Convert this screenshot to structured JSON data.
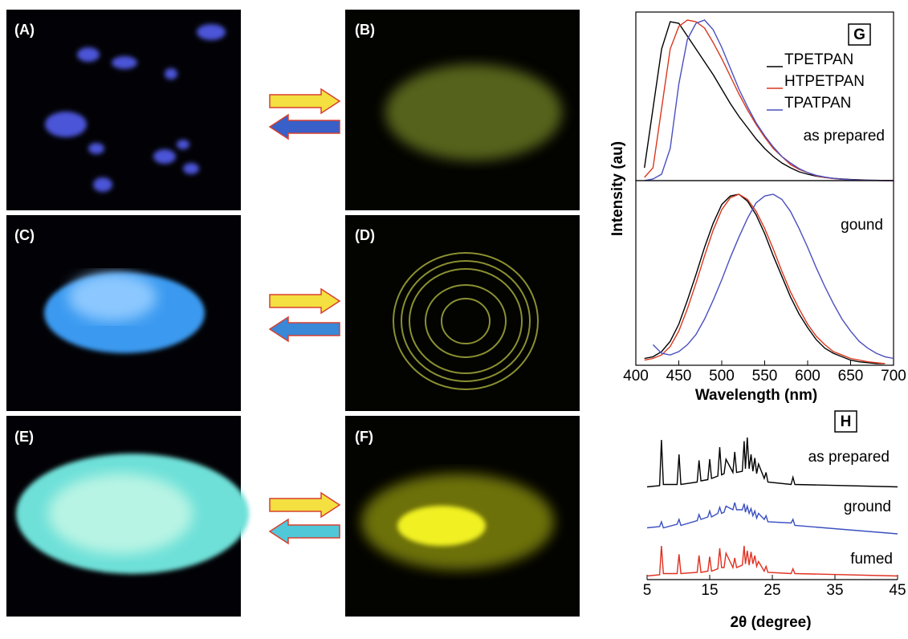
{
  "panels": [
    "(A)",
    "(B)",
    "(C)",
    "(D)",
    "(E)",
    "(F)"
  ],
  "chart_data": [
    {
      "type": "line",
      "label": "G",
      "ylabel": "Intensity (au)",
      "annotations": [
        "as prepared"
      ],
      "xlim": [
        400,
        700
      ],
      "ylim": [
        0,
        1.05
      ],
      "legend": "upper right",
      "x": [
        410,
        420,
        430,
        440,
        450,
        460,
        470,
        480,
        490,
        500,
        510,
        520,
        530,
        540,
        550,
        560,
        570,
        580,
        590,
        600,
        610,
        620,
        630,
        640,
        650,
        660,
        670,
        680,
        690,
        700
      ],
      "series": [
        {
          "name": "TPETPAN",
          "color": "#000000",
          "values": [
            0.08,
            0.45,
            0.82,
            0.99,
            0.98,
            0.9,
            0.82,
            0.74,
            0.66,
            0.57,
            0.48,
            0.4,
            0.33,
            0.26,
            0.2,
            0.15,
            0.11,
            0.08,
            0.055,
            0.04,
            0.028,
            0.02,
            0.014,
            0.01,
            0.007,
            0.005,
            0.003,
            0.002,
            0.001,
            0
          ]
        },
        {
          "name": "HTPETPAN",
          "color": "#d9381e",
          "values": [
            0.02,
            0.08,
            0.45,
            0.82,
            0.96,
            1.0,
            0.99,
            0.95,
            0.86,
            0.76,
            0.65,
            0.54,
            0.44,
            0.35,
            0.27,
            0.2,
            0.15,
            0.1,
            0.07,
            0.05,
            0.03,
            0.02,
            0.013,
            0.008,
            0.005,
            0.003,
            0.002,
            0.001,
            0,
            0
          ]
        },
        {
          "name": "TPATPAN",
          "color": "#4a4fc0",
          "values": [
            0,
            0.01,
            0.04,
            0.2,
            0.6,
            0.88,
            0.98,
            1.0,
            0.94,
            0.83,
            0.7,
            0.57,
            0.46,
            0.36,
            0.28,
            0.21,
            0.15,
            0.11,
            0.075,
            0.05,
            0.033,
            0.022,
            0.014,
            0.009,
            0.005,
            0.003,
            0.002,
            0.001,
            0,
            0
          ]
        }
      ]
    },
    {
      "type": "line",
      "xlabel": "Wavelength (nm)",
      "annotations": [
        "gound"
      ],
      "xlim": [
        400,
        700
      ],
      "xticks": [
        400,
        450,
        500,
        550,
        600,
        650,
        700
      ],
      "ylim": [
        0,
        1.08
      ],
      "x": [
        410,
        420,
        430,
        440,
        450,
        460,
        470,
        480,
        490,
        500,
        510,
        520,
        530,
        540,
        550,
        560,
        570,
        580,
        590,
        600,
        610,
        620,
        630,
        640,
        650,
        660,
        670,
        680,
        690,
        700
      ],
      "series": [
        {
          "color": "#000000",
          "values": [
            0.04,
            0.05,
            0.08,
            0.14,
            0.24,
            0.38,
            0.53,
            0.69,
            0.83,
            0.94,
            0.99,
            1.0,
            0.96,
            0.88,
            0.77,
            0.64,
            0.52,
            0.4,
            0.3,
            0.22,
            0.15,
            0.1,
            0.07,
            0.05,
            0.03,
            0.02,
            0.015,
            0.01,
            0.01,
            null
          ]
        },
        {
          "color": "#d9381e",
          "values": [
            0.03,
            0.04,
            0.06,
            0.11,
            0.2,
            0.33,
            0.48,
            0.64,
            0.79,
            0.91,
            0.98,
            1.0,
            0.97,
            0.9,
            0.8,
            0.68,
            0.55,
            0.43,
            0.33,
            0.24,
            0.17,
            0.12,
            0.08,
            0.06,
            0.04,
            0.03,
            0.02,
            0.015,
            0.01,
            null
          ]
        },
        {
          "color": "#4a4fc0",
          "values": [
            null,
            0.12,
            0.07,
            0.06,
            0.08,
            0.12,
            0.18,
            0.27,
            0.38,
            0.5,
            0.63,
            0.75,
            0.86,
            0.95,
            0.99,
            1.0,
            0.97,
            0.9,
            0.8,
            0.69,
            0.57,
            0.46,
            0.36,
            0.27,
            0.2,
            0.14,
            0.1,
            0.07,
            0.05,
            0.04
          ]
        }
      ]
    },
    {
      "type": "line",
      "label": "H",
      "xlabel": "2θ (degree)",
      "annotations": [
        "as prepared",
        "ground",
        "fumed"
      ],
      "xlim": [
        5,
        45
      ],
      "xticks": [
        5,
        15,
        25,
        35,
        45
      ],
      "ylim": [
        0,
        12
      ],
      "x": [
        5,
        7,
        7.3,
        7.6,
        9.8,
        10.1,
        10.4,
        13,
        13.3,
        13.6,
        14.7,
        15,
        15.3,
        16.3,
        16.6,
        16.9,
        17.3,
        17.6,
        18.7,
        19,
        19.3,
        20.2,
        20.5,
        20.7,
        21,
        21.3,
        21.6,
        21.9,
        22.2,
        22.5,
        22.8,
        23.7,
        24,
        24.3,
        28,
        28.3,
        28.6,
        45
      ],
      "series": [
        {
          "color": "#000000",
          "values": [
            7.7,
            7.8,
            11.6,
            7.9,
            7.9,
            10.4,
            7.9,
            8.1,
            9.9,
            8.2,
            8.3,
            10.0,
            8.4,
            8.6,
            11.0,
            8.7,
            8.8,
            10.0,
            8.9,
            10.6,
            8.9,
            9.0,
            11.5,
            9.2,
            11.8,
            9.2,
            10.4,
            9.0,
            10.1,
            8.8,
            9.6,
            8.4,
            8.9,
            8.1,
            7.9,
            8.5,
            7.9,
            7.7
          ]
        },
        {
          "color": "#3a4fc0",
          "values": [
            4.3,
            4.4,
            4.8,
            4.3,
            4.6,
            5.0,
            4.5,
            4.9,
            5.4,
            5.0,
            5.2,
            5.7,
            5.2,
            5.5,
            6.0,
            5.5,
            5.6,
            6.1,
            5.8,
            6.4,
            5.8,
            5.8,
            6.3,
            5.6,
            6.1,
            5.5,
            5.9,
            5.3,
            5.7,
            5.1,
            5.5,
            5.0,
            5.3,
            4.8,
            4.7,
            5.0,
            4.5,
            3.8
          ]
        },
        {
          "color": "#e03020",
          "values": [
            0.3,
            0.4,
            2.8,
            0.5,
            0.5,
            2.1,
            0.5,
            0.6,
            2.0,
            0.6,
            0.7,
            1.9,
            0.7,
            0.9,
            2.6,
            1.0,
            1.0,
            2.2,
            1.0,
            1.8,
            1.0,
            1.2,
            2.8,
            1.3,
            2.4,
            1.2,
            2.3,
            1.3,
            2.0,
            1.1,
            1.5,
            0.7,
            1.1,
            0.6,
            0.5,
            0.9,
            0.5,
            0.3
          ]
        }
      ]
    }
  ]
}
